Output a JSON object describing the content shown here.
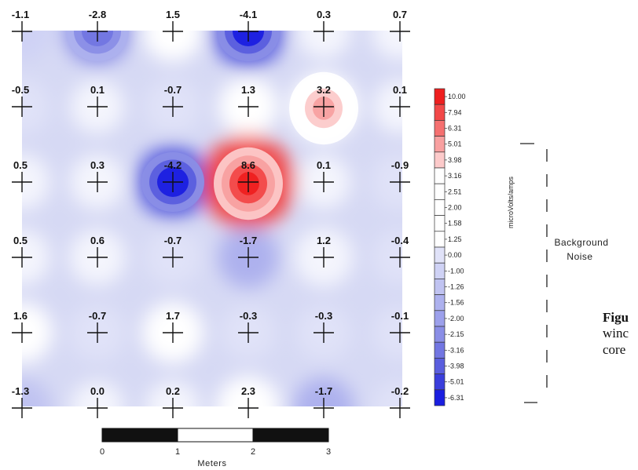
{
  "chart_data": {
    "type": "heatmap",
    "grid_values": [
      [
        "-1.1",
        "-2.8",
        "1.5",
        "-4.1",
        "0.3",
        "0.7"
      ],
      [
        "-0.5",
        "0.1",
        "-0.7",
        "1.3",
        "3.2",
        "0.1"
      ],
      [
        "0.5",
        "0.3",
        "-4.2",
        "8.6",
        "0.1",
        "-0.9"
      ],
      [
        "0.5",
        "0.6",
        "-0.7",
        "-1.7",
        "1.2",
        "-0.4"
      ],
      [
        "1.6",
        "-0.7",
        "1.7",
        "-0.3",
        "-0.3",
        "-0.1"
      ],
      [
        "-1.3",
        "0.0",
        "0.2",
        "2.3",
        "-1.7",
        "-0.2"
      ]
    ],
    "legend": {
      "label": "microVolts/amps",
      "levels": [
        "10.00",
        "7.94",
        "6.31",
        "5.01",
        "3.98",
        "3.16",
        "2.51",
        "2.00",
        "1.58",
        "1.25",
        "0.00",
        "-1.00",
        "-1.26",
        "-1.56",
        "-2.00",
        "-2.15",
        "-3.16",
        "-3.98",
        "-5.01",
        "-6.31"
      ],
      "colors": [
        "#ee1f1f",
        "#f24848",
        "#f57070",
        "#f8a0a0",
        "#fccaca",
        "#ffffff",
        "#ffffff",
        "#ffffff",
        "#ffffff",
        "#ffffff",
        "#e0e2f8",
        "#cfd2f5",
        "#c0c3f1",
        "#adb1ee",
        "#9ca0eb",
        "#8a8ee6",
        "#7276e2",
        "#5a5ede",
        "#3a3edc",
        "#1a1ee0"
      ]
    },
    "scale_bar": {
      "ticks": [
        "0",
        "1",
        "2",
        "3"
      ],
      "unit": "Meters"
    }
  },
  "annotation": {
    "bracket_label_line1": "Background",
    "bracket_label_line2": "Noise"
  },
  "caption": {
    "line1_bold": "Figu",
    "line2": "winc",
    "line3": "core"
  }
}
